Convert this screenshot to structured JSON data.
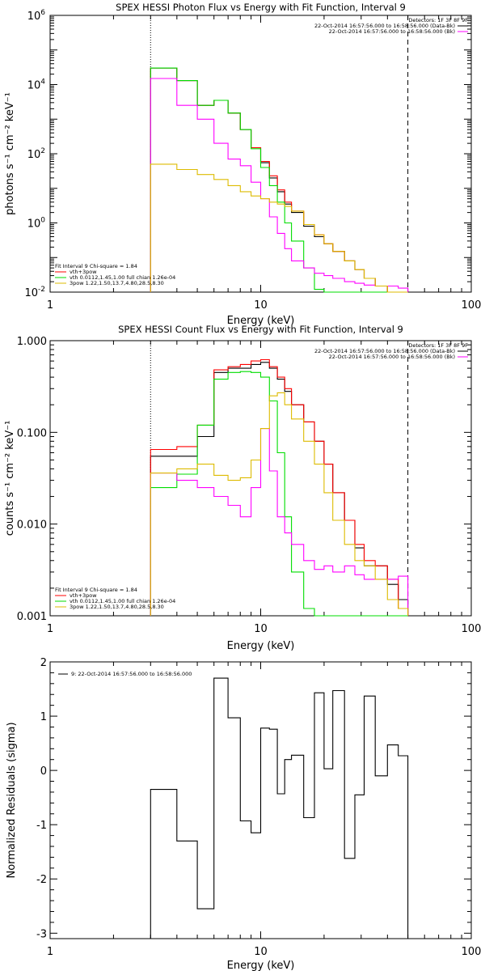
{
  "chart_data": [
    {
      "type": "line",
      "title": "SPEX HESSI Photon Flux vs Energy with Fit Function, Interval 9",
      "xlabel": "Energy (keV)",
      "ylabel": "photons s⁻¹ cm⁻² keV⁻¹",
      "xscale": "log",
      "yscale": "log",
      "xlim": [
        1,
        100
      ],
      "ylim": [
        0.01,
        1000000
      ],
      "x_ticks": [
        "1",
        "10",
        "100"
      ],
      "y_ticks": [
        {
          "base": "10",
          "exp": "-2"
        },
        {
          "base": "10",
          "exp": "0"
        },
        {
          "base": "10",
          "exp": "2"
        },
        {
          "base": "10",
          "exp": "4"
        },
        {
          "base": "10",
          "exp": "6"
        }
      ],
      "y_tick_values": [
        0.01,
        1,
        100,
        10000,
        1000000
      ],
      "vlines": [
        {
          "x": 3,
          "style": "dotted"
        },
        {
          "x": 50,
          "style": "dashed"
        }
      ],
      "bin_edges": [
        3,
        4,
        5,
        6,
        7,
        8,
        9,
        10,
        11,
        12,
        13,
        14,
        16,
        18,
        20,
        22,
        25,
        28,
        31,
        35,
        40,
        45,
        50
      ],
      "series": [
        {
          "name": "",
          "color": "#000000",
          "values": [
            30000,
            13000,
            2500,
            3500,
            1500,
            500,
            150,
            55,
            20,
            8,
            3.5,
            2,
            0.8,
            0.4,
            0.25,
            0.15,
            0.08,
            0.045,
            0.025,
            0.015,
            0.01,
            0.01
          ]
        },
        {
          "name": "",
          "color": "#ff0000",
          "values": [
            30000,
            13000,
            2500,
            3500,
            1500,
            500,
            150,
            60,
            23,
            9,
            4,
            2.2,
            0.9,
            0.45,
            0.25,
            0.15,
            0.08,
            0.045,
            0.025,
            0.015,
            0.01,
            0.01
          ]
        },
        {
          "name": "",
          "color": "#00dd00",
          "values": [
            30000,
            13000,
            2500,
            3500,
            1500,
            500,
            140,
            40,
            12,
            4,
            1,
            0.3,
            0.05,
            0.012,
            0.01,
            0.01,
            0.01,
            0.01,
            0.01,
            0.01,
            0.01,
            0.01
          ]
        },
        {
          "name": "",
          "color": "#ff00ff",
          "values": [
            15000,
            2500,
            1000,
            200,
            70,
            45,
            15,
            5,
            1.5,
            0.5,
            0.18,
            0.08,
            0.05,
            0.035,
            0.03,
            0.025,
            0.02,
            0.018,
            0.016,
            0.015,
            0.015,
            0.013
          ]
        },
        {
          "name": "",
          "color": "#ddbb00",
          "values": [
            50,
            35,
            25,
            18,
            12,
            8,
            6,
            5,
            4,
            3.5,
            3,
            2.2,
            0.9,
            0.45,
            0.25,
            0.15,
            0.08,
            0.045,
            0.025,
            0.015,
            0.01,
            0.01
          ]
        }
      ],
      "legend_top_right": {
        "header": "Detectors: 1F 3F 8F 9F",
        "lines": [
          {
            "text": "22-Oct-2014 16:57:56.000 to 16:58:56.000 (Data-Bk)",
            "color": "#000000"
          },
          {
            "text": "22-Oct-2014 16:57:56.000 to 16:58:56.000 (Bk)",
            "color": "#ff00ff"
          }
        ]
      },
      "legend_bottom_left": {
        "header": "Fit Interval 9   Chi-square = 1.84",
        "lines": [
          {
            "text": "vth+3pow",
            "color": "#ff0000"
          },
          {
            "text": "vth 0.0112,1.45,1.00  full chian 1.26e-04",
            "color": "#00dd00"
          },
          {
            "text": "3pow  1.22,1.50,13.7,4.80,28.5,8.30",
            "color": "#ddbb00"
          }
        ]
      }
    },
    {
      "type": "line",
      "title": "SPEX HESSI Count Flux vs Energy with Fit Function, Interval 9",
      "xlabel": "Energy (keV)",
      "ylabel": "counts s⁻¹ cm⁻² keV⁻¹",
      "xscale": "log",
      "yscale": "log",
      "xlim": [
        1,
        100
      ],
      "ylim": [
        0.001,
        1
      ],
      "x_ticks": [
        "1",
        "10",
        "100"
      ],
      "y_ticks": [
        "0.001",
        "0.010",
        "0.100",
        "1.000"
      ],
      "y_tick_values": [
        0.001,
        0.01,
        0.1,
        1
      ],
      "vlines": [
        {
          "x": 3,
          "style": "dotted"
        },
        {
          "x": 50,
          "style": "dashed"
        }
      ],
      "bin_edges": [
        3,
        4,
        5,
        6,
        7,
        8,
        9,
        10,
        11,
        12,
        13,
        14,
        16,
        18,
        20,
        22,
        25,
        28,
        31,
        35,
        40,
        45,
        50
      ],
      "series": [
        {
          "name": "",
          "color": "#000000",
          "values": [
            0.055,
            0.055,
            0.09,
            0.45,
            0.5,
            0.5,
            0.55,
            0.58,
            0.5,
            0.38,
            0.28,
            0.2,
            0.13,
            0.08,
            0.045,
            0.022,
            0.011,
            0.0055,
            0.0035,
            0.0035,
            0.0022,
            0.0015
          ]
        },
        {
          "name": "",
          "color": "#ff0000",
          "values": [
            0.065,
            0.07,
            0.12,
            0.48,
            0.52,
            0.55,
            0.6,
            0.62,
            0.52,
            0.4,
            0.3,
            0.2,
            0.13,
            0.08,
            0.045,
            0.022,
            0.011,
            0.006,
            0.004,
            0.0035,
            0.0025,
            0.0012
          ]
        },
        {
          "name": "",
          "color": "#00dd00",
          "values": [
            0.025,
            0.035,
            0.12,
            0.38,
            0.45,
            0.46,
            0.45,
            0.4,
            0.22,
            0.06,
            0.012,
            0.003,
            0.0012,
            0.001,
            0.001,
            0.001,
            0.001,
            0.001,
            0.001,
            0.001,
            0.001,
            0.001
          ]
        },
        {
          "name": "",
          "color": "#ff00ff",
          "values": [
            0.036,
            0.03,
            0.025,
            0.02,
            0.016,
            0.012,
            0.025,
            0.11,
            0.038,
            0.012,
            0.008,
            0.006,
            0.004,
            0.0032,
            0.0035,
            0.003,
            0.0035,
            0.0028,
            0.0025,
            0.0025,
            0.0025,
            0.0027
          ]
        },
        {
          "name": "",
          "color": "#ddbb00",
          "values": [
            0.036,
            0.04,
            0.045,
            0.034,
            0.03,
            0.032,
            0.05,
            0.11,
            0.25,
            0.27,
            0.2,
            0.14,
            0.08,
            0.045,
            0.022,
            0.011,
            0.006,
            0.004,
            0.0035,
            0.0025,
            0.0015,
            0.0012
          ]
        }
      ],
      "legend_top_right": {
        "header": "Detectors: 1F 3F 8F 9F",
        "lines": [
          {
            "text": "22-Oct-2014 16:57:56.000 to 16:58:56.000 (Data-Bk)",
            "color": "#000000"
          },
          {
            "text": "22-Oct-2014 16:57:56.000 to 16:58:56.000 (Bk)",
            "color": "#ff00ff"
          }
        ]
      },
      "legend_bottom_left": {
        "header": "Fit Interval 9   Chi-square = 1.84",
        "lines": [
          {
            "text": "vth+3pow",
            "color": "#ff0000"
          },
          {
            "text": "vth 0.0112,1.45,1.00  full chian 1.26e-04",
            "color": "#00dd00"
          },
          {
            "text": "3pow  1.22,1.50,13.7,4.80,28.5,8.30",
            "color": "#ddbb00"
          }
        ]
      }
    },
    {
      "type": "line",
      "title": "",
      "xlabel": "Energy (keV)",
      "ylabel": "Normalized Residuals (sigma)",
      "xscale": "log",
      "yscale": "linear",
      "xlim": [
        1,
        100
      ],
      "ylim": [
        -3.1,
        2
      ],
      "x_ticks": [
        "1",
        "10",
        "100"
      ],
      "y_ticks": [
        "-3",
        "-2",
        "-1",
        "0",
        "1",
        "2"
      ],
      "y_tick_values": [
        -3,
        -2,
        -1,
        0,
        1,
        2
      ],
      "bin_edges": [
        3,
        4,
        5,
        6,
        7,
        8,
        9,
        10,
        11,
        12,
        13,
        14,
        16,
        18,
        20,
        22,
        25,
        28,
        31,
        35,
        40,
        45,
        50
      ],
      "series": [
        {
          "name": "",
          "color": "#000000",
          "values": [
            -0.35,
            -1.3,
            -2.55,
            1.7,
            0.97,
            -0.93,
            -1.15,
            0.78,
            0.76,
            -0.43,
            0.2,
            0.28,
            -0.87,
            1.43,
            0.03,
            1.47,
            -1.62,
            -0.45,
            1.37,
            -0.1,
            0.47,
            0.27
          ]
        }
      ],
      "legend_top_left": {
        "lines": [
          {
            "text": "9: 22-Oct-2014 16:57:56.000 to 16:58:56.000",
            "color": "#000000"
          }
        ]
      }
    }
  ]
}
